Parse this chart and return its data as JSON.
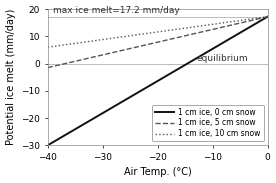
{
  "title_annotation": "max ice melt=17.2 mm/day",
  "equilibrium_label": "equilibrium",
  "xlabel": "Air Temp. (°C)",
  "ylabel": "Potential ice melt (mm/day)",
  "xlim": [
    -40,
    0
  ],
  "ylim": [
    -30,
    20
  ],
  "yticks": [
    -30,
    -20,
    -10,
    0,
    10,
    20
  ],
  "xticks": [
    -40,
    -30,
    -20,
    -10,
    0
  ],
  "max_melt": 17.2,
  "equilibrium_y": 0,
  "lines": [
    {
      "label": "1 cm ice, 0 cm snow",
      "x0": -40,
      "y0": -30.0,
      "x1": 0,
      "y1": 17.2,
      "linestyle": "solid",
      "color": "#111111",
      "linewidth": 1.4
    },
    {
      "label": "1 cm ice, 5 cm snow",
      "x0": -40,
      "y0": -1.5,
      "x1": 0,
      "y1": 17.2,
      "linestyle": "dashed",
      "color": "#555555",
      "linewidth": 1.0
    },
    {
      "label": "1 cm ice, 10 cm snow",
      "x0": -40,
      "y0": 6.0,
      "x1": 0,
      "y1": 17.2,
      "linestyle": "dotted",
      "color": "#555555",
      "linewidth": 1.0
    }
  ],
  "max_melt_line_color": "#bbbbbb",
  "equilibrium_line_color": "#bbbbbb",
  "background_color": "#ffffff",
  "legend_loc": "lower right",
  "annotation_fontsize": 6.5,
  "tick_fontsize": 6.5,
  "label_fontsize": 7.0
}
